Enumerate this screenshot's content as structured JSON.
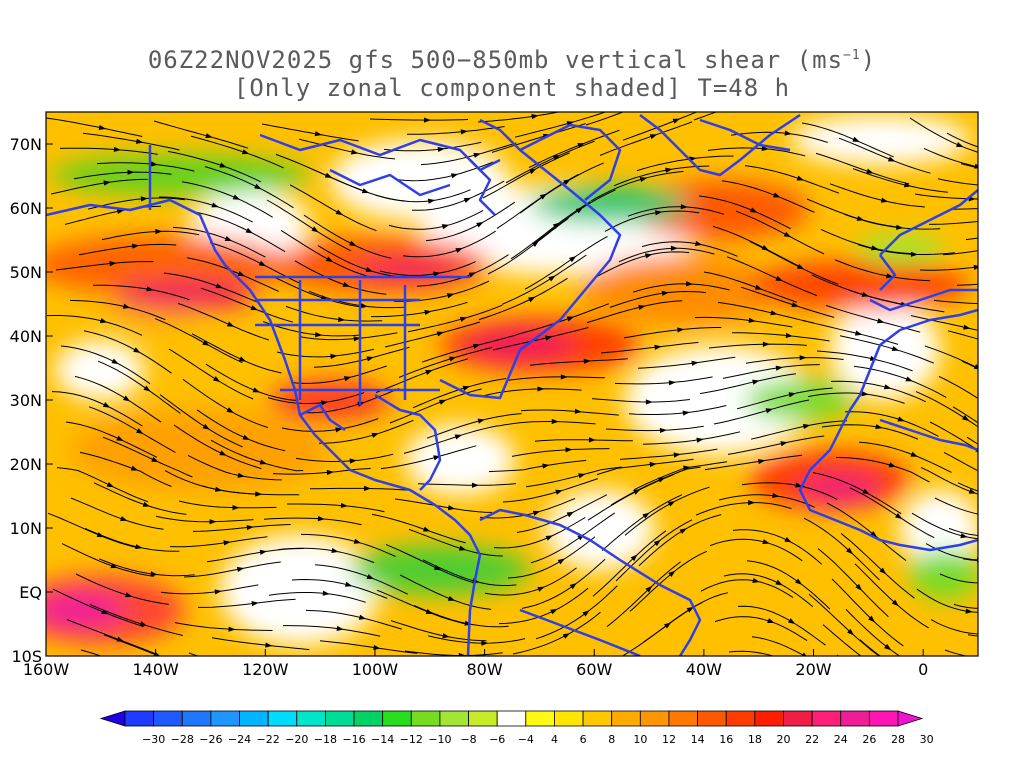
{
  "title": {
    "line1": "06Z22NOV2025 gfs 500−850mb vertical shear (ms",
    "line1_superscript": "−1",
    "line1_close": ")",
    "line2": "[Only zonal component shaded] T=48 h"
  },
  "map": {
    "lon_range": [
      -160,
      10
    ],
    "lat_range": [
      -10,
      75
    ],
    "lon_ticks": [
      {
        "value": -160,
        "label": "160W"
      },
      {
        "value": -140,
        "label": "140W"
      },
      {
        "value": -120,
        "label": "120W"
      },
      {
        "value": -100,
        "label": "100W"
      },
      {
        "value": -80,
        "label": "80W"
      },
      {
        "value": -60,
        "label": "60W"
      },
      {
        "value": -40,
        "label": "40W"
      },
      {
        "value": -20,
        "label": "20W"
      },
      {
        "value": 0,
        "label": "0"
      }
    ],
    "lat_ticks": [
      {
        "value": -10,
        "label": "10S"
      },
      {
        "value": 0,
        "label": "EQ"
      },
      {
        "value": 10,
        "label": "10N"
      },
      {
        "value": 20,
        "label": "20N"
      },
      {
        "value": 30,
        "label": "30N"
      },
      {
        "value": 40,
        "label": "40N"
      },
      {
        "value": 50,
        "label": "50N"
      },
      {
        "value": 60,
        "label": "60N"
      },
      {
        "value": 70,
        "label": "70N"
      }
    ],
    "coastline_color": "#2f3fe8",
    "streamline_color": "#000000"
  },
  "colorbar": {
    "labels": [
      "−30",
      "−28",
      "−26",
      "−24",
      "−22",
      "−20",
      "−18",
      "−16",
      "−14",
      "−12",
      "−10",
      "−8",
      "−6",
      "−4",
      "4",
      "6",
      "8",
      "10",
      "12",
      "14",
      "16",
      "18",
      "20",
      "22",
      "24",
      "26",
      "28",
      "30"
    ],
    "colors": [
      "#1e00e6",
      "#1e3cff",
      "#1e5aff",
      "#1e78ff",
      "#1e96ff",
      "#00b4ff",
      "#00dcff",
      "#00e6c8",
      "#00dc96",
      "#00d264",
      "#28dc1e",
      "#78dc1e",
      "#a0e632",
      "#c8eb28",
      "#ffffff",
      "#fffa14",
      "#ffe600",
      "#ffc800",
      "#ffaa00",
      "#ff9600",
      "#ff7800",
      "#ff5a00",
      "#ff3c00",
      "#ff1e00",
      "#f01e46",
      "#ff1e78",
      "#f01e96",
      "#ff14b4",
      "#f014d2"
    ]
  }
}
